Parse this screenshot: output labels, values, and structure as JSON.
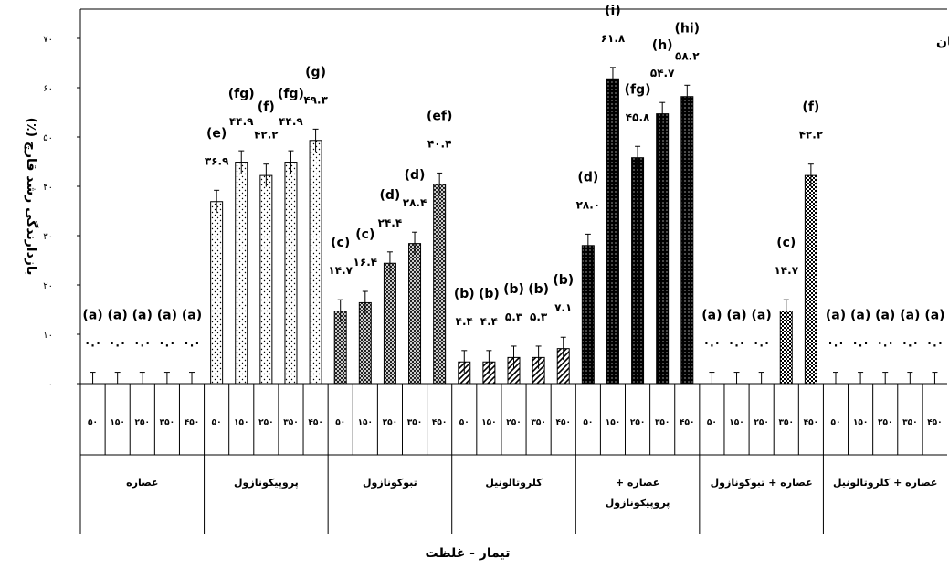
{
  "chart_data": {
    "type": "bar",
    "title": "قارچ رنگین کمان",
    "ylabel": "بازدارندگی رشد قارچ (٪)",
    "xlabel": "تیمار - غلظت",
    "ylim": [
      0,
      70
    ],
    "yticks": [
      "۰",
      "۱۰",
      "۲۰",
      "۳۰",
      "۴۰",
      "۵۰",
      "۶۰",
      "۷۰"
    ],
    "ytick_values": [
      0,
      10,
      20,
      30,
      40,
      50,
      60,
      70
    ],
    "concentration_labels": [
      "۵۰",
      "۱۵۰",
      "۲۵۰",
      "۳۵۰",
      "۴۵۰"
    ],
    "groups": [
      {
        "name_lines": [
          "عصاره"
        ],
        "pattern": "none",
        "values": [
          0,
          0,
          0,
          0,
          0
        ],
        "value_labels": [
          "۰.۰",
          "۰.۰",
          "۰.۰",
          "۰.۰",
          "۰.۰"
        ],
        "letters": [
          "(a)",
          "(a)",
          "(a)",
          "(a)",
          "(a)"
        ]
      },
      {
        "name_lines": [
          "پروپیکونازول"
        ],
        "pattern": "dots",
        "values": [
          36.9,
          44.9,
          42.2,
          44.9,
          49.3
        ],
        "value_labels": [
          "۳۶.۹",
          "۴۴.۹",
          "۴۲.۲",
          "۴۴.۹",
          "۴۹.۳"
        ],
        "letters": [
          "(e)",
          "(fg)",
          "(f)",
          "(fg)",
          "(g)"
        ]
      },
      {
        "name_lines": [
          "تبوکونازول"
        ],
        "pattern": "crosshatch",
        "values": [
          14.7,
          16.4,
          24.4,
          28.4,
          40.4
        ],
        "value_labels": [
          "۱۴.۷",
          "۱۶.۴",
          "۲۴.۴",
          "۲۸.۴",
          "۴۰.۴"
        ],
        "letters": [
          "(c)",
          "(c)",
          "(d)",
          "(d)",
          "(ef)"
        ]
      },
      {
        "name_lines": [
          "کلروتالونیل"
        ],
        "pattern": "diagonal",
        "values": [
          4.4,
          4.4,
          5.3,
          5.3,
          7.1
        ],
        "value_labels": [
          "۴.۴",
          "۴.۴",
          "۵.۳",
          "۵.۳",
          "۷.۱"
        ],
        "letters": [
          "(b)",
          "(b)",
          "(b)",
          "(b)",
          "(b)"
        ]
      },
      {
        "name_lines": [
          "عصاره +",
          "پروپیکونازول"
        ],
        "pattern": "dense-dots",
        "values": [
          28.0,
          61.8,
          45.8,
          54.7,
          58.2
        ],
        "value_labels": [
          "۲۸.۰",
          "۶۱.۸",
          "۴۵.۸",
          "۵۴.۷",
          "۵۸.۲"
        ],
        "letters": [
          "(d)",
          "(i)",
          "(fg)",
          "(h)",
          "(hi)"
        ]
      },
      {
        "name_lines": [
          "عصاره + تبوکونازول"
        ],
        "pattern": "checker",
        "values": [
          0,
          0,
          0,
          14.7,
          42.2
        ],
        "value_labels": [
          "۰.۰",
          "۰.۰",
          "۰.۰",
          "۱۴.۷",
          "۴۲.۲"
        ],
        "letters": [
          "(a)",
          "(a)",
          "(a)",
          "(c)",
          "(f)"
        ]
      },
      {
        "name_lines": [
          "عصاره + کلروتالونیل"
        ],
        "pattern": "none",
        "values": [
          0,
          0,
          0,
          0,
          0
        ],
        "value_labels": [
          "۰.۰",
          "۰.۰",
          "۰.۰",
          "۰.۰",
          "۰.۰"
        ],
        "letters": [
          "(a)",
          "(a)",
          "(a)",
          "(a)",
          "(a)"
        ]
      }
    ]
  }
}
